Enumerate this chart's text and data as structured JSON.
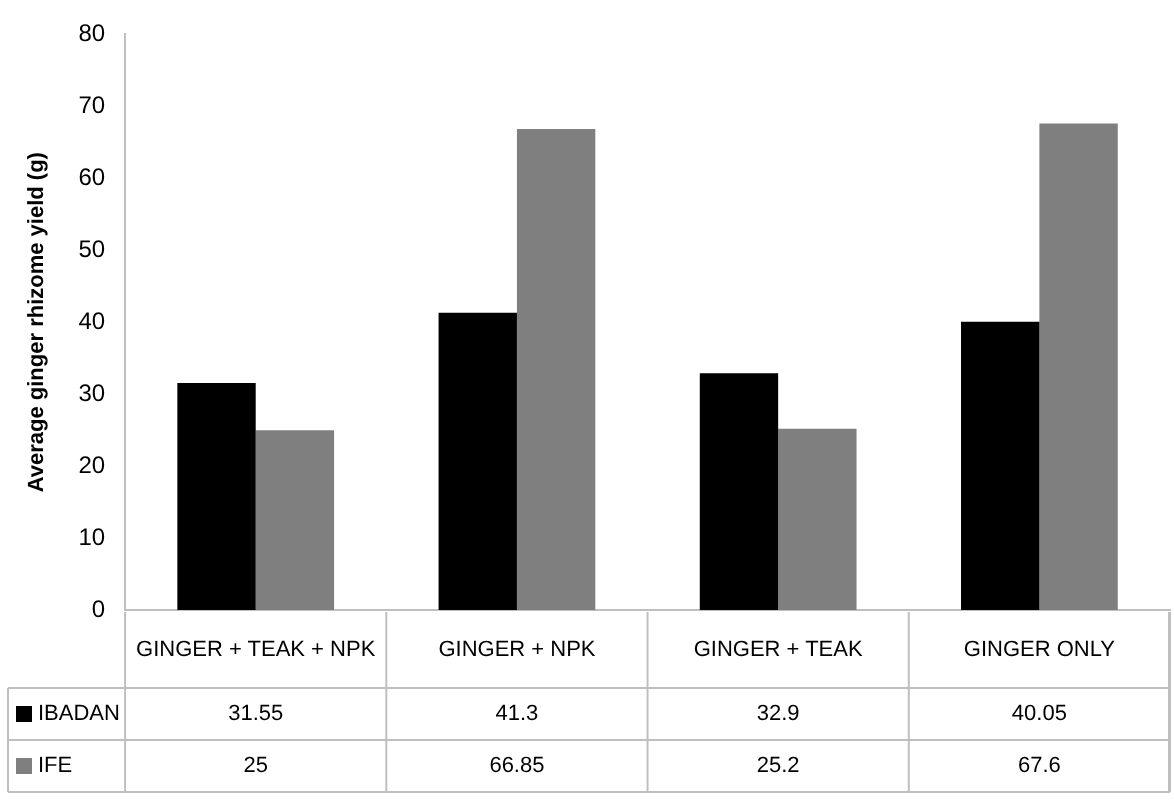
{
  "chart_data": {
    "type": "bar",
    "ylabel": "Average ginger rhizome yield (g)",
    "categories": [
      "GINGER + TEAK + NPK",
      "GINGER + NPK",
      "GINGER + TEAK",
      "GINGER ONLY"
    ],
    "series": [
      {
        "name": "IBADAN",
        "color": "#000000",
        "values": [
          31.55,
          41.3,
          32.9,
          40.05
        ]
      },
      {
        "name": "IFE",
        "color": "#7f7f7f",
        "values": [
          25,
          66.85,
          25.2,
          67.6
        ]
      }
    ],
    "ylim": [
      0,
      80
    ],
    "yticks": [
      0,
      10,
      20,
      30,
      40,
      50,
      60,
      70,
      80
    ],
    "grid": false,
    "legend": "bottom",
    "data_labels": true
  }
}
